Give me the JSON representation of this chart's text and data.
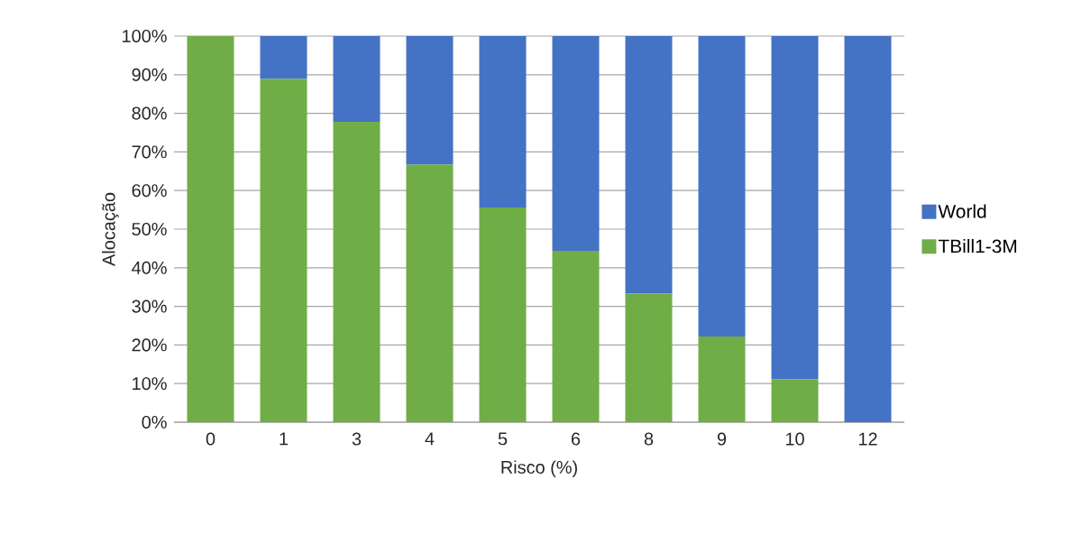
{
  "chart_data": {
    "type": "bar",
    "stacked": true,
    "xlabel": "Risco (%)",
    "ylabel": "Alocação",
    "categories": [
      "0",
      "1",
      "3",
      "4",
      "5",
      "6",
      "8",
      "9",
      "10",
      "12"
    ],
    "series": [
      {
        "name": "TBill1-3M",
        "color": "#70ad47",
        "values": [
          100,
          88.9,
          77.8,
          66.7,
          55.6,
          44.4,
          33.3,
          22.2,
          11.1,
          0
        ]
      },
      {
        "name": "World",
        "color": "#4472c4",
        "values": [
          0,
          11.1,
          22.2,
          33.3,
          44.4,
          55.6,
          66.7,
          77.8,
          88.9,
          100
        ]
      }
    ],
    "ylim": [
      0,
      100
    ],
    "yticks": [
      {
        "value": 0,
        "label": "0%"
      },
      {
        "value": 10,
        "label": "10%"
      },
      {
        "value": 20,
        "label": "20%"
      },
      {
        "value": 30,
        "label": "30%"
      },
      {
        "value": 40,
        "label": "40%"
      },
      {
        "value": 50,
        "label": "50%"
      },
      {
        "value": 60,
        "label": "60%"
      },
      {
        "value": 70,
        "label": "70%"
      },
      {
        "value": 80,
        "label": "80%"
      },
      {
        "value": 90,
        "label": "90%"
      },
      {
        "value": 100,
        "label": "100%"
      }
    ],
    "grid": "y",
    "legend": "right"
  }
}
